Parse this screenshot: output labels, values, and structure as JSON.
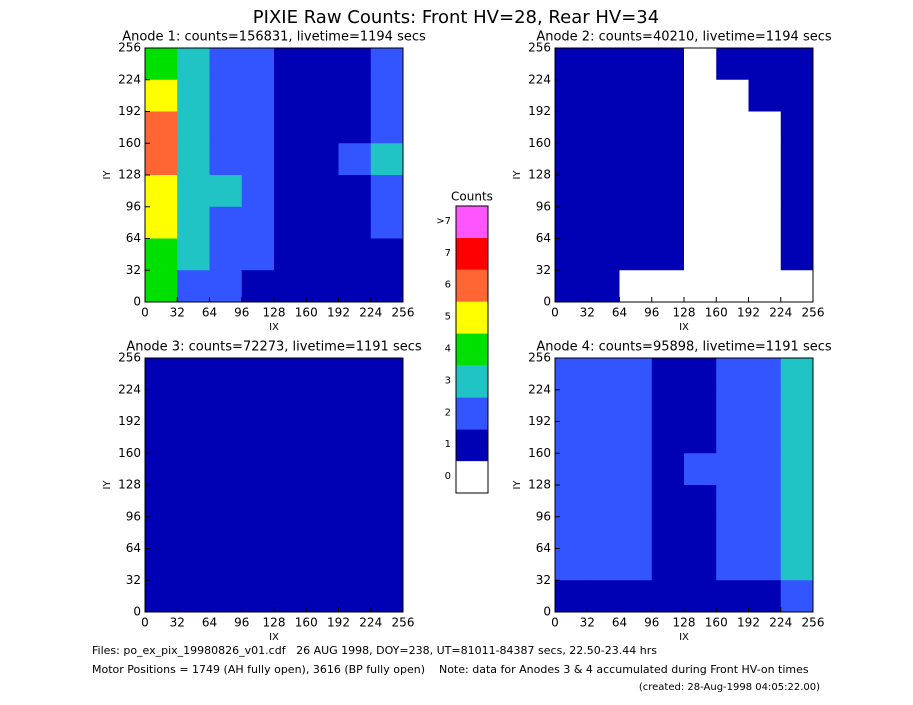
{
  "title": "PIXIE Raw Counts:  Front HV=28, Rear HV=34",
  "colorbar": {
    "title": "Counts",
    "levels": [
      0,
      1,
      2,
      3,
      4,
      5,
      6,
      7,
      {
        "value": 8,
        "label": ">7"
      }
    ],
    "colors": [
      "#ffffff",
      "#0000b4",
      "#3355ff",
      "#20c4c4",
      "#00e000",
      "#ffff00",
      "#ff6633",
      "#ff0000",
      "#ff55ff"
    ]
  },
  "chart_data": [
    {
      "type": "heatmap",
      "title": "Anode 1: counts=156831, livetime=1194 secs",
      "xlabel": "IX",
      "ylabel": "IY",
      "xlim": [
        0,
        256
      ],
      "ylim": [
        0,
        256
      ],
      "xticks": [
        0,
        32,
        64,
        96,
        128,
        160,
        192,
        224,
        256
      ],
      "yticks": [
        0,
        32,
        64,
        96,
        128,
        160,
        192,
        224,
        256
      ],
      "z": [
        [
          4,
          2.6,
          2.2,
          1.8,
          0.6,
          1.4,
          1.4,
          1.6
        ],
        [
          5,
          2.8,
          2.4,
          1.8,
          0.6,
          1.4,
          1.4,
          1.6
        ],
        [
          6,
          3.0,
          2.4,
          1.8,
          0.6,
          1.4,
          1.4,
          1.8
        ],
        [
          5.5,
          2.8,
          2.4,
          1.8,
          0.6,
          1.4,
          1.6,
          2.6
        ],
        [
          5,
          3.0,
          2.6,
          1.8,
          0.6,
          1.4,
          1.4,
          1.8
        ],
        [
          4.5,
          2.8,
          2.4,
          1.6,
          0.6,
          1.4,
          1.4,
          1.6
        ],
        [
          4,
          2.6,
          2.2,
          1.6,
          0.6,
          1.2,
          1.4,
          1.4
        ],
        [
          3.5,
          2.4,
          1.8,
          1.4,
          0.6,
          1.2,
          1.2,
          1.2
        ]
      ]
    },
    {
      "type": "heatmap",
      "title": "Anode 2: counts=40210, livetime=1194 secs",
      "xlabel": "IX",
      "ylabel": "IY",
      "xlim": [
        0,
        256
      ],
      "ylim": [
        0,
        256
      ],
      "xticks": [
        0,
        32,
        64,
        96,
        128,
        160,
        192,
        224,
        256
      ],
      "yticks": [
        0,
        32,
        64,
        96,
        128,
        160,
        192,
        224,
        256
      ],
      "z": [
        [
          1.0,
          0.8,
          0.7,
          0.6,
          0.3,
          0.5,
          0.5,
          1.0
        ],
        [
          1.2,
          1.0,
          0.8,
          0.6,
          0.3,
          0.4,
          0.5,
          1.0
        ],
        [
          1.0,
          1.0,
          0.8,
          0.6,
          0.3,
          0.3,
          0.4,
          0.8
        ],
        [
          1.0,
          0.8,
          0.6,
          0.5,
          0.3,
          0.3,
          0.4,
          1.2
        ],
        [
          1.0,
          0.8,
          0.6,
          0.5,
          0.3,
          0.3,
          0.4,
          1.0
        ],
        [
          0.8,
          0.6,
          0.5,
          0.5,
          0.3,
          0.3,
          0.3,
          0.6
        ],
        [
          0.8,
          0.6,
          0.5,
          0.5,
          0.3,
          0.3,
          0.3,
          0.5
        ],
        [
          0.6,
          0.5,
          0.4,
          0.4,
          0.3,
          0.3,
          0.3,
          0.4
        ]
      ]
    },
    {
      "type": "heatmap",
      "title": "Anode 3: counts=72273, livetime=1191 secs",
      "xlabel": "IX",
      "ylabel": "IY",
      "xlim": [
        0,
        256
      ],
      "ylim": [
        0,
        256
      ],
      "xticks": [
        0,
        32,
        64,
        96,
        128,
        160,
        192,
        224,
        256
      ],
      "yticks": [
        0,
        32,
        64,
        96,
        128,
        160,
        192,
        224,
        256
      ],
      "z": [
        [
          1.2,
          1.2,
          1.2,
          1.0,
          1.0,
          1.2,
          1.2,
          1.2
        ],
        [
          1.2,
          1.2,
          1.2,
          1.0,
          1.0,
          1.2,
          1.2,
          1.2
        ],
        [
          1.2,
          1.2,
          1.2,
          1.0,
          1.0,
          1.2,
          1.2,
          1.2
        ],
        [
          1.2,
          1.2,
          1.2,
          1.0,
          1.1,
          1.2,
          1.2,
          1.2
        ],
        [
          1.2,
          1.2,
          1.2,
          1.0,
          1.0,
          1.2,
          1.2,
          1.2
        ],
        [
          1.2,
          1.2,
          1.2,
          1.0,
          1.0,
          1.2,
          1.2,
          1.2
        ],
        [
          1.1,
          1.2,
          1.2,
          1.0,
          1.0,
          1.1,
          1.2,
          1.1
        ],
        [
          0.8,
          0.9,
          0.9,
          0.8,
          0.8,
          0.9,
          0.9,
          0.8
        ]
      ]
    },
    {
      "type": "heatmap",
      "title": "Anode 4: counts=95898, livetime=1191 secs",
      "xlabel": "IX",
      "ylabel": "IY",
      "xlim": [
        0,
        256
      ],
      "ylim": [
        0,
        256
      ],
      "xticks": [
        0,
        32,
        64,
        96,
        128,
        160,
        192,
        224,
        256
      ],
      "yticks": [
        0,
        32,
        64,
        96,
        128,
        160,
        192,
        224,
        256
      ],
      "z": [
        [
          1.6,
          1.6,
          1.5,
          1.4,
          1.4,
          1.6,
          1.6,
          2.6
        ],
        [
          1.6,
          1.6,
          1.5,
          1.4,
          1.4,
          1.6,
          1.6,
          2.6
        ],
        [
          1.6,
          1.6,
          1.5,
          1.4,
          1.4,
          1.6,
          1.6,
          2.6
        ],
        [
          1.6,
          1.6,
          1.5,
          1.4,
          1.5,
          1.6,
          1.6,
          2.6
        ],
        [
          1.6,
          1.6,
          1.5,
          1.4,
          1.4,
          1.6,
          1.6,
          2.6
        ],
        [
          1.6,
          1.6,
          1.5,
          1.4,
          1.4,
          1.6,
          1.6,
          2.6
        ],
        [
          1.6,
          1.6,
          1.5,
          1.4,
          1.4,
          1.6,
          1.6,
          2.6
        ],
        [
          1.4,
          1.4,
          1.4,
          1.3,
          1.3,
          1.4,
          1.4,
          2.2
        ]
      ]
    }
  ],
  "footer": {
    "files": "Files: po_ex_pix_19980826_v01.cdf   26 AUG 1998, DOY=238, UT=81011-84387 secs, 22.50-23.44 hrs",
    "motor": "Motor Positions = 1749 (AH fully open), 3616 (BP fully open)    Note: data for Anodes 3 & 4 accumulated during Front HV-on times",
    "created": "(created: 28-Aug-1998 04:05:22.00)"
  }
}
